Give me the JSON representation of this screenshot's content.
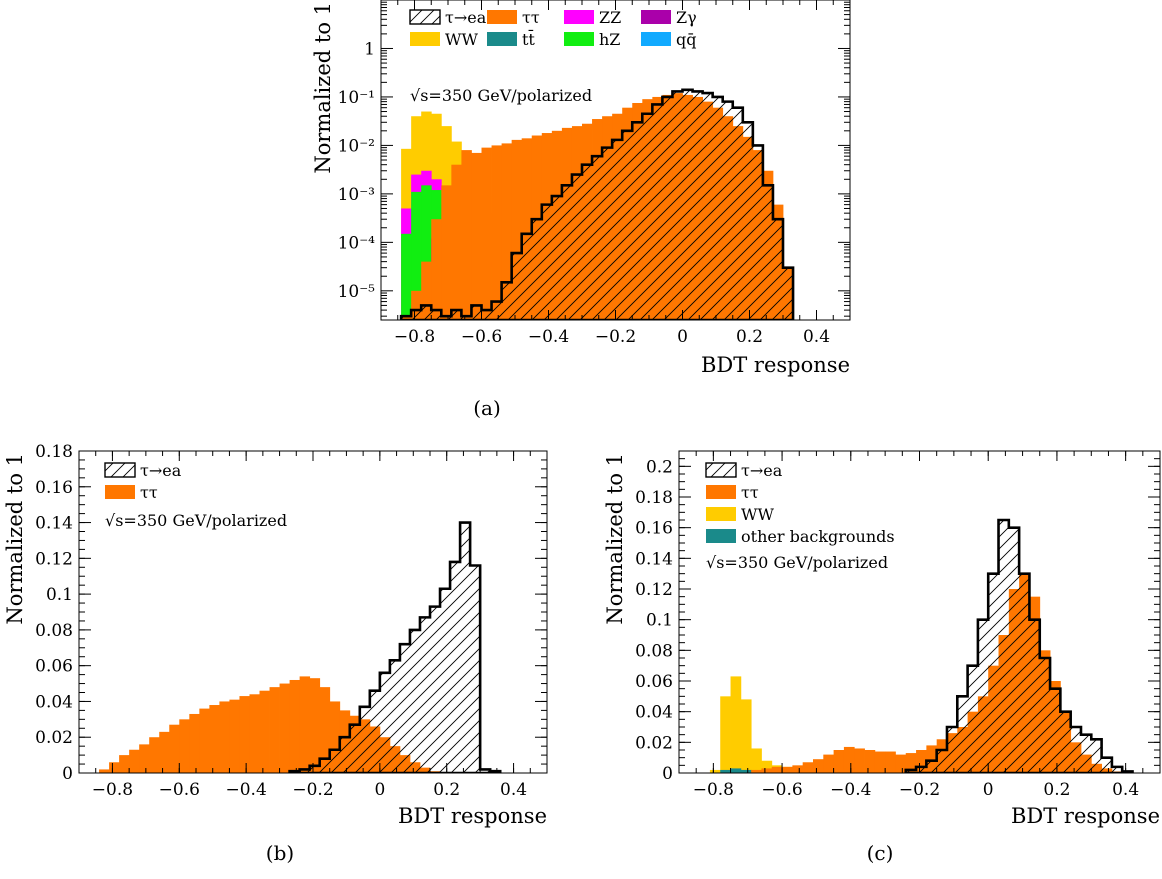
{
  "chart_data": [
    {
      "id": "a",
      "type": "bar",
      "caption": "(a)",
      "ylabel": "Normalized to 1",
      "xlabel": "BDT response",
      "yscale": "log",
      "xlim": [
        -0.9,
        0.5
      ],
      "ylim": [
        2.5e-06,
        10
      ],
      "xticks": [
        "−0.8",
        "−0.6",
        "−0.4",
        "−0.2",
        "0",
        "0.2",
        "0.4"
      ],
      "xtick_values": [
        -0.8,
        -0.6,
        -0.4,
        -0.2,
        0,
        0.2,
        0.4
      ],
      "yticks": [
        "10⁻⁵",
        "10⁻⁴",
        "10⁻³",
        "10⁻²",
        "10⁻¹",
        "1"
      ],
      "ytick_values": [
        1e-05,
        0.0001,
        0.001,
        0.01,
        0.1,
        1
      ],
      "annotation": "√s=350 GeV/polarized",
      "legend_position": "top-left",
      "legend": [
        {
          "label": "τ→ea",
          "color": "#ffffff",
          "hatch": true
        },
        {
          "label": "ττ",
          "color": "#ff7700"
        },
        {
          "label": "ZZ",
          "color": "#ff00ff"
        },
        {
          "label": "Zγ",
          "color": "#aa00aa"
        },
        {
          "label": "WW",
          "color": "#ffcc00"
        },
        {
          "label": "tt̄",
          "color": "#1a8a8a"
        },
        {
          "label": "hZ",
          "color": "#11ee11"
        },
        {
          "label": "qq̄",
          "color": "#11aaff"
        }
      ],
      "bin_width": 0.03,
      "series": [
        {
          "name": "WW",
          "color": "#ffcc00",
          "x_start": -0.84,
          "values": [
            0.0085,
            0.04,
            0.05,
            0.045,
            0.025,
            0.012,
            0.004,
            0.002,
            0.0009,
            0.0004,
            0.0002,
            0.00015,
            9e-05,
            7e-05,
            4e-05,
            3e-05,
            1.2e-05,
            1.5e-05,
            2e-05,
            1.2e-05,
            1.5e-05,
            8e-06
          ]
        },
        {
          "name": "ZZ",
          "color": "#ff00ff",
          "x_start": -0.84,
          "values": [
            0.0005,
            0.0025,
            0.003,
            0.002,
            0.0008,
            0.00025,
            0.0001,
            6e-05,
            4e-05,
            3e-05,
            2e-05,
            1.2e-05,
            8e-06,
            8e-06,
            5e-06
          ]
        },
        {
          "name": "hZ",
          "color": "#11ee11",
          "x_start": -0.84,
          "values": [
            0.00015,
            0.0011,
            0.0015,
            0.0012,
            0.0006,
            0.00015,
            6e-05,
            4e-05,
            3e-05,
            1e-05,
            8e-06,
            6e-06
          ]
        },
        {
          "name": "Zγ",
          "color": "#aa00aa",
          "x_start": -0.75,
          "values": [
            0.00012,
            0.0002,
            6e-05,
            4e-05,
            2e-05
          ]
        },
        {
          "name": "qq̄",
          "color": "#11aaff",
          "x_start": -0.54,
          "values": [
            3.5e-06,
            4e-06,
            5e-06,
            8e-06,
            1e-05,
            1.5e-05,
            2e-05,
            1.8e-05,
            1.5e-05,
            1e-05,
            1.2e-05,
            1e-05,
            6e-06
          ]
        },
        {
          "name": "ττ",
          "color": "#ff7700",
          "x_start": -0.84,
          "values": [
            3e-06,
            1e-05,
            4e-05,
            0.0003,
            0.0015,
            0.004,
            0.008,
            0.007,
            0.009,
            0.01,
            0.011,
            0.013,
            0.014,
            0.016,
            0.018,
            0.02,
            0.023,
            0.025,
            0.028,
            0.035,
            0.04,
            0.045,
            0.06,
            0.075,
            0.09,
            0.1,
            0.11,
            0.12,
            0.11,
            0.1,
            0.08,
            0.06,
            0.04,
            0.025,
            0.015,
            0.008,
            0.003,
            0.0006,
            3e-05
          ]
        },
        {
          "name": "τ→ea",
          "color": "#ffffff",
          "x_start": -0.84,
          "values": [
            3e-06,
            4e-06,
            5e-06,
            4e-06,
            3e-06,
            4e-06,
            3e-06,
            5e-06,
            4e-06,
            6e-06,
            1.5e-05,
            6e-05,
            0.00015,
            0.0003,
            0.0006,
            0.0009,
            0.0015,
            0.0025,
            0.004,
            0.006,
            0.009,
            0.013,
            0.02,
            0.03,
            0.045,
            0.07,
            0.1,
            0.13,
            0.14,
            0.13,
            0.12,
            0.1,
            0.08,
            0.06,
            0.03,
            0.01,
            0.0015,
            0.0003,
            3e-05
          ]
        }
      ]
    },
    {
      "id": "b",
      "type": "bar",
      "caption": "(b)",
      "ylabel": "Normalized to 1",
      "xlabel": "BDT response",
      "xlim": [
        -0.9,
        0.5
      ],
      "ylim": [
        0,
        0.18
      ],
      "xticks": [
        "−0.8",
        "−0.6",
        "−0.4",
        "−0.2",
        "0",
        "0.2",
        "0.4"
      ],
      "xtick_values": [
        -0.8,
        -0.6,
        -0.4,
        -0.2,
        0,
        0.2,
        0.4
      ],
      "yticks": [
        "0",
        "0.02",
        "0.04",
        "0.06",
        "0.08",
        "0.1",
        "0.12",
        "0.14",
        "0.16",
        "0.18"
      ],
      "ytick_values": [
        0,
        0.02,
        0.04,
        0.06,
        0.08,
        0.1,
        0.12,
        0.14,
        0.16,
        0.18
      ],
      "annotation": "√s=350 GeV/polarized",
      "legend_position": "top-left",
      "legend": [
        {
          "label": "τ→ea",
          "color": "#ffffff",
          "hatch": true
        },
        {
          "label": "ττ",
          "color": "#ff7700"
        }
      ],
      "bin_width": 0.03,
      "series": [
        {
          "name": "ττ",
          "color": "#ff7700",
          "x_start": -0.84,
          "values": [
            0.002,
            0.006,
            0.01,
            0.013,
            0.016,
            0.02,
            0.023,
            0.027,
            0.03,
            0.033,
            0.036,
            0.038,
            0.04,
            0.041,
            0.043,
            0.044,
            0.046,
            0.048,
            0.05,
            0.052,
            0.054,
            0.053,
            0.048,
            0.04,
            0.035,
            0.032,
            0.03,
            0.026,
            0.02,
            0.015,
            0.01,
            0.006,
            0.003,
            0.001
          ]
        },
        {
          "name": "τ→ea",
          "color": "#ffffff",
          "x_start": -0.27,
          "values": [
            0.001,
            0.002,
            0.004,
            0.008,
            0.013,
            0.02,
            0.027,
            0.037,
            0.046,
            0.056,
            0.063,
            0.072,
            0.08,
            0.087,
            0.093,
            0.103,
            0.118,
            0.14,
            0.116,
            0.002,
            0.001
          ]
        }
      ]
    },
    {
      "id": "c",
      "type": "bar",
      "caption": "(c)",
      "ylabel": "Normalized to 1",
      "xlabel": "BDT response",
      "xlim": [
        -0.9,
        0.5
      ],
      "ylim": [
        0,
        0.21
      ],
      "xticks": [
        "−0.8",
        "−0.6",
        "−0.4",
        "−0.2",
        "0",
        "0.2",
        "0.4"
      ],
      "xtick_values": [
        -0.8,
        -0.6,
        -0.4,
        -0.2,
        0,
        0.2,
        0.4
      ],
      "yticks": [
        "0",
        "0.02",
        "0.04",
        "0.06",
        "0.08",
        "0.1",
        "0.12",
        "0.14",
        "0.16",
        "0.18",
        "0.2"
      ],
      "ytick_values": [
        0,
        0.02,
        0.04,
        0.06,
        0.08,
        0.1,
        0.12,
        0.14,
        0.16,
        0.18,
        0.2
      ],
      "annotation": "√s=350 GeV/polarized",
      "legend_position": "top-left",
      "legend": [
        {
          "label": "τ→ea",
          "color": "#ffffff",
          "hatch": true
        },
        {
          "label": "ττ",
          "color": "#ff7700"
        },
        {
          "label": "WW",
          "color": "#ffcc00"
        },
        {
          "label": "other backgrounds",
          "color": "#1a8a8a"
        }
      ],
      "bin_width": 0.03,
      "series": [
        {
          "name": "WW",
          "color": "#ffcc00",
          "x_start": -0.81,
          "values": [
            0.002,
            0.05,
            0.063,
            0.048,
            0.016,
            0.008,
            0.005,
            0.004,
            0.003,
            0.002
          ]
        },
        {
          "name": "other backgrounds",
          "color": "#1a8a8a",
          "x_start": -0.78,
          "values": [
            0.002,
            0.003,
            0.002,
            0.001
          ]
        },
        {
          "name": "ττ",
          "color": "#ff7700",
          "x_start": -0.69,
          "values": [
            0.002,
            0.003,
            0.004,
            0.004,
            0.005,
            0.007,
            0.009,
            0.012,
            0.015,
            0.017,
            0.016,
            0.015,
            0.014,
            0.014,
            0.012,
            0.013,
            0.015,
            0.018,
            0.022,
            0.026,
            0.03,
            0.04,
            0.05,
            0.07,
            0.09,
            0.12,
            0.13,
            0.115,
            0.08,
            0.06,
            0.04,
            0.02,
            0.012,
            0.006,
            0.003,
            0.001
          ]
        },
        {
          "name": "τ→ea",
          "color": "#ffffff",
          "x_start": -0.24,
          "values": [
            0.002,
            0.004,
            0.008,
            0.015,
            0.03,
            0.05,
            0.07,
            0.1,
            0.13,
            0.165,
            0.16,
            0.13,
            0.1,
            0.075,
            0.055,
            0.04,
            0.03,
            0.025,
            0.022,
            0.01,
            0.004,
            0.001
          ]
        }
      ]
    }
  ]
}
